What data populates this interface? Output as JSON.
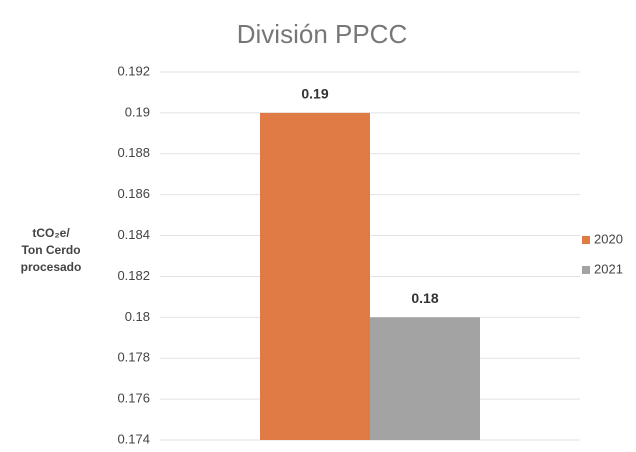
{
  "chart_data": {
    "type": "bar",
    "title": "División PPCC",
    "y_label": "tCO₂e/\nTon Cerdo\nprocesado",
    "categories": [
      null
    ],
    "series": [
      {
        "name": "2020",
        "color": "#e07b45",
        "values": [
          0.19
        ]
      },
      {
        "name": "2021",
        "color": "#a3a3a3",
        "values": [
          0.18
        ]
      }
    ],
    "ylim": [
      0.174,
      0.192
    ],
    "yticks": [
      0.174,
      0.176,
      0.178,
      0.18,
      0.182,
      0.184,
      0.186,
      0.188,
      0.19,
      0.192
    ],
    "grid": true,
    "legend": "right"
  }
}
